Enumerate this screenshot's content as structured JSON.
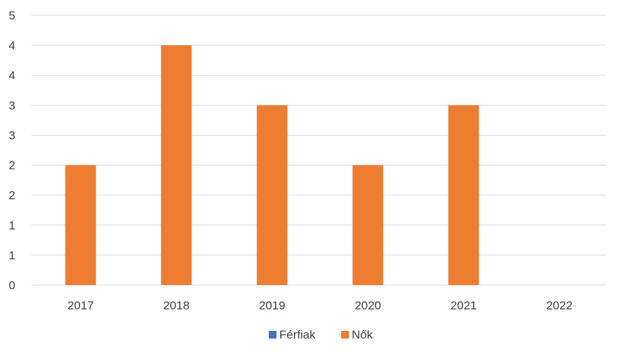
{
  "chart_data": {
    "type": "bar",
    "categories": [
      "2017",
      "2018",
      "2019",
      "2020",
      "2021",
      "2022"
    ],
    "series": [
      {
        "name": "Férfiak",
        "color": "#4472c4",
        "values": [
          0,
          0,
          0,
          0,
          0,
          0
        ]
      },
      {
        "name": "Nők",
        "color": "#ed7d31",
        "values": [
          2,
          4,
          3,
          2,
          3,
          0
        ]
      }
    ],
    "y_tick_labels": [
      "0",
      "1",
      "1",
      "2",
      "2",
      "3",
      "3",
      "4",
      "4",
      "5"
    ],
    "ylim": [
      0,
      4.5
    ],
    "grid": true,
    "legend_position": "bottom",
    "title": "",
    "xlabel": "",
    "ylabel": ""
  }
}
